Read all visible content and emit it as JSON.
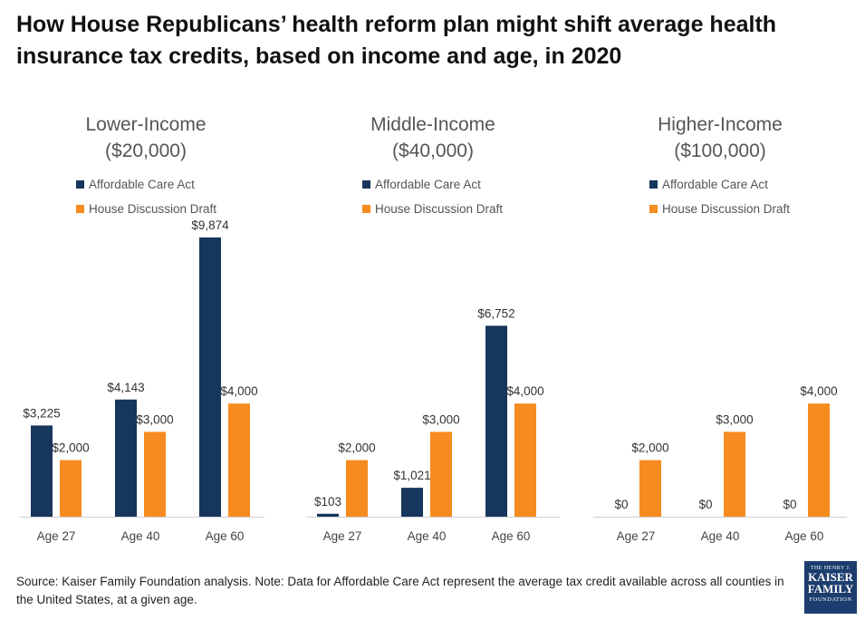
{
  "title": "How House Republicans’ health reform plan might shift average health insurance tax credits, based on income and age, in 2020",
  "source": "Source: Kaiser Family Foundation  analysis. Note: Data for Affordable Care Act represent the average tax credit available across all counties in the United States, at a given age.",
  "logo": {
    "top": "THE HENRY J.",
    "line1": "KAISER",
    "line2": "FAMILY",
    "bottom": "FOUNDATION"
  },
  "colors": {
    "aca": "#17365d",
    "house": "#f68b1f"
  },
  "chart_data": [
    {
      "type": "bar",
      "title_line1": "Lower-Income",
      "title_line2": "($20,000)",
      "categories": [
        "Age 27",
        "Age 40",
        "Age 60"
      ],
      "series": [
        {
          "name": "Affordable Care Act",
          "values": [
            3225,
            4143,
            9874
          ],
          "labels": [
            "$3,225",
            "$4,143",
            "$9,874"
          ]
        },
        {
          "name": "House Discussion Draft",
          "values": [
            2000,
            3000,
            4000
          ],
          "labels": [
            "$2,000",
            "$3,000",
            "$4,000"
          ]
        }
      ],
      "ylim": [
        0,
        10000
      ]
    },
    {
      "type": "bar",
      "title_line1": "Middle-Income",
      "title_line2": "($40,000)",
      "categories": [
        "Age 27",
        "Age 40",
        "Age 60"
      ],
      "series": [
        {
          "name": "Affordable Care Act",
          "values": [
            103,
            1021,
            6752
          ],
          "labels": [
            "$103",
            "$1,021",
            "$6,752"
          ]
        },
        {
          "name": "House Discussion Draft",
          "values": [
            2000,
            3000,
            4000
          ],
          "labels": [
            "$2,000",
            "$3,000",
            "$4,000"
          ]
        }
      ],
      "ylim": [
        0,
        10000
      ]
    },
    {
      "type": "bar",
      "title_line1": "Higher-Income",
      "title_line2": "($100,000)",
      "categories": [
        "Age 27",
        "Age 40",
        "Age 60"
      ],
      "series": [
        {
          "name": "Affordable Care Act",
          "values": [
            0,
            0,
            0
          ],
          "labels": [
            "$0",
            "$0",
            "$0"
          ]
        },
        {
          "name": "House Discussion Draft",
          "values": [
            2000,
            3000,
            4000
          ],
          "labels": [
            "$2,000",
            "$3,000",
            "$4,000"
          ]
        }
      ],
      "ylim": [
        0,
        10000
      ]
    }
  ]
}
